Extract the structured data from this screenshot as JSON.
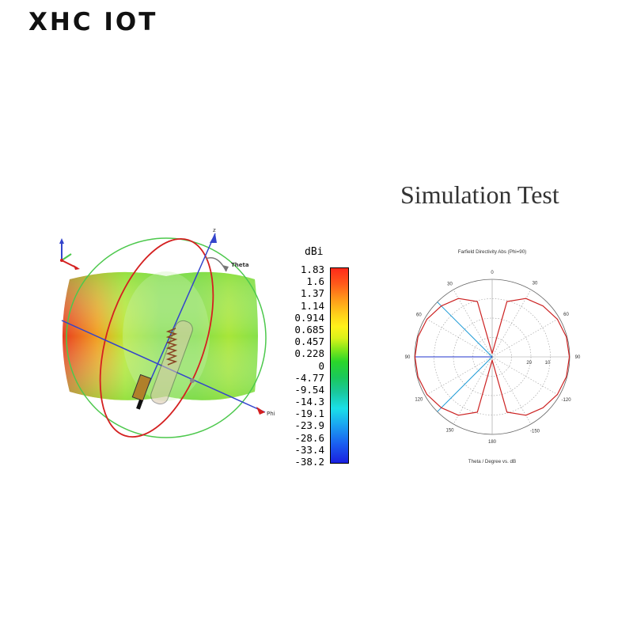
{
  "logo_text": "XHC IOT",
  "section_title": "Simulation Test",
  "pattern3d": {
    "axis_labels": {
      "theta": "Theta",
      "z": "z",
      "phi": "Phi"
    }
  },
  "colorbar": {
    "unit": "dBi",
    "ticks": [
      "1.83",
      "1.6",
      "1.37",
      "1.14",
      "0.914",
      "0.685",
      "0.457",
      "0.228",
      "0",
      "-4.77",
      "-9.54",
      "-14.3",
      "-19.1",
      "-23.9",
      "-28.6",
      "-33.4",
      "-38.2"
    ]
  },
  "chart_data": {
    "type": "polar",
    "title": "Farfield Directivity Abs (Phi=90)",
    "xlabel": "Theta / Degree vs. dB",
    "angle_ticks_left": [
      "0",
      "30",
      "60",
      "90",
      "120",
      "150",
      "180"
    ],
    "angle_ticks_right": [
      "30",
      "60",
      "90",
      "-120",
      "-150"
    ],
    "radial_ticks": [
      "20",
      "10"
    ],
    "series": [
      {
        "color": "#cc2222",
        "theta_deg": [
          0,
          15,
          30,
          45,
          60,
          75,
          90,
          105,
          120,
          135,
          150,
          165,
          180
        ],
        "directivity_dBi": [
          -38.2,
          -9.0,
          -3.5,
          -1.0,
          0.8,
          1.6,
          1.83,
          1.6,
          0.8,
          -1.0,
          -3.5,
          -9.0,
          -38.2
        ]
      }
    ],
    "highlight_lines": [
      {
        "color": "#1a9ad6",
        "theta_deg": 45
      },
      {
        "color": "#1a9ad6",
        "theta_deg": 135
      },
      {
        "color": "#2233cc",
        "theta_deg": 90
      }
    ]
  }
}
